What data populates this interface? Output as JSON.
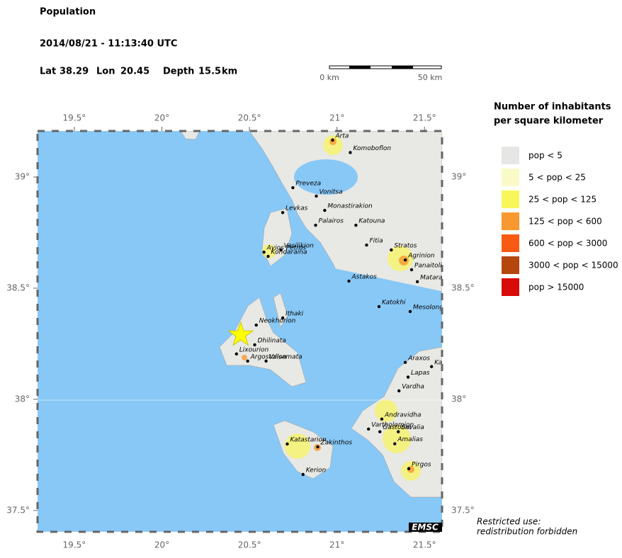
{
  "header": {
    "title": "Population",
    "datetime": "2014/08/21 - 11:13:40 UTC",
    "lat_label": "Lat",
    "lon_label": "Lon",
    "depth_label": "Depth",
    "depth_unit": "km"
  },
  "epicenter": {
    "lat": 38.29,
    "lon": 20.45,
    "depth": 15.5
  },
  "scale_bar": {
    "start": "0 km",
    "end": "50 km"
  },
  "map": {
    "lonlim": [
      19.29,
      21.6
    ],
    "latlim": [
      37.404,
      39.207
    ],
    "lonticks": [
      {
        "value": 19.5,
        "label": "19.5°"
      },
      {
        "value": 20,
        "label": "20°"
      },
      {
        "value": 20.5,
        "label": "20.5°"
      },
      {
        "value": 21,
        "label": "21°"
      },
      {
        "value": 21.5,
        "label": "21.5°"
      }
    ],
    "latticks": [
      {
        "value": 37.5,
        "label": "37.5°"
      },
      {
        "value": 38,
        "label": "38°"
      },
      {
        "value": 38.5,
        "label": "38.5°"
      },
      {
        "value": 39,
        "label": "39°"
      }
    ],
    "cities": [
      {
        "name": "Arta",
        "lon": 20.975,
        "lat": 39.166
      },
      {
        "name": "Komoboflon",
        "lon": 21.076,
        "lat": 39.11
      },
      {
        "name": "Preveza",
        "lon": 20.748,
        "lat": 38.952
      },
      {
        "name": "Vonitsa",
        "lon": 20.882,
        "lat": 38.914
      },
      {
        "name": "Levkas",
        "lon": 20.69,
        "lat": 38.84
      },
      {
        "name": "Monastirakion",
        "lon": 20.93,
        "lat": 38.85
      },
      {
        "name": "Palairos",
        "lon": 20.878,
        "lat": 38.783
      },
      {
        "name": "Katouna",
        "lon": 21.108,
        "lat": 38.783
      },
      {
        "name": "Fitia",
        "lon": 21.169,
        "lat": 38.694
      },
      {
        "name": "Stratos",
        "lon": 21.31,
        "lat": 38.672
      },
      {
        "name": "Ayios Petros",
        "lon": 20.583,
        "lat": 38.662
      },
      {
        "name": "Vasilikion",
        "lon": 20.68,
        "lat": 38.672
      },
      {
        "name": "Kondaraina",
        "lon": 20.607,
        "lat": 38.643
      },
      {
        "name": "Agrinion",
        "lon": 21.39,
        "lat": 38.627
      },
      {
        "name": "Panaitolion",
        "lon": 21.426,
        "lat": 38.583
      },
      {
        "name": "Mataranga",
        "lon": 21.459,
        "lat": 38.529
      },
      {
        "name": "Astakos",
        "lon": 21.068,
        "lat": 38.532
      },
      {
        "name": "Katokhi",
        "lon": 21.24,
        "lat": 38.417
      },
      {
        "name": "Mesolongion",
        "lon": 21.418,
        "lat": 38.395
      },
      {
        "name": "Ithaki",
        "lon": 20.69,
        "lat": 38.366
      },
      {
        "name": "Neokhorion",
        "lon": 20.539,
        "lat": 38.334
      },
      {
        "name": "Dhilinata",
        "lon": 20.53,
        "lat": 38.245
      },
      {
        "name": "Lixourion",
        "lon": 20.426,
        "lat": 38.204
      },
      {
        "name": "Argostolion",
        "lon": 20.49,
        "lat": 38.172
      },
      {
        "name": "Valsamata",
        "lon": 20.595,
        "lat": 38.172
      },
      {
        "name": "Araxos",
        "lon": 21.39,
        "lat": 38.166
      },
      {
        "name": "Kato Akhaia",
        "lon": 21.54,
        "lat": 38.147
      },
      {
        "name": "Lapas",
        "lon": 21.406,
        "lat": 38.1
      },
      {
        "name": "Vardha",
        "lon": 21.354,
        "lat": 38.038
      },
      {
        "name": "Andravidha",
        "lon": 21.256,
        "lat": 37.911
      },
      {
        "name": "Vartholomion",
        "lon": 21.18,
        "lat": 37.866
      },
      {
        "name": "Gastouni",
        "lon": 21.245,
        "lat": 37.854
      },
      {
        "name": "Savalia",
        "lon": 21.35,
        "lat": 37.854
      },
      {
        "name": "Amalias",
        "lon": 21.33,
        "lat": 37.8
      },
      {
        "name": "Katastarion",
        "lon": 20.716,
        "lat": 37.799
      },
      {
        "name": "Zakinthos",
        "lon": 20.89,
        "lat": 37.786
      },
      {
        "name": "Pirgos",
        "lon": 21.41,
        "lat": 37.688
      },
      {
        "name": "Kerion",
        "lon": 20.806,
        "lat": 37.662
      }
    ]
  },
  "legend": {
    "title_line1": "Number of inhabitants",
    "title_line2": "per square kilometer",
    "items": [
      {
        "label": "pop < 5",
        "color": "#e6e6e4"
      },
      {
        "label": "5 < pop < 25",
        "color": "#fafac8"
      },
      {
        "label": "25 < pop < 125",
        "color": "#f8f65a"
      },
      {
        "label": "125 < pop < 600",
        "color": "#f8982e"
      },
      {
        "label": "600 < pop < 3000",
        "color": "#f85a14"
      },
      {
        "label": "3000 < pop < 15000",
        "color": "#b4460e"
      },
      {
        "label": "pop > 15000",
        "color": "#d80a0a"
      }
    ]
  },
  "footer": {
    "line1": "Restricted use:",
    "line2": "redistribution forbidden",
    "badge": "EMSC"
  }
}
